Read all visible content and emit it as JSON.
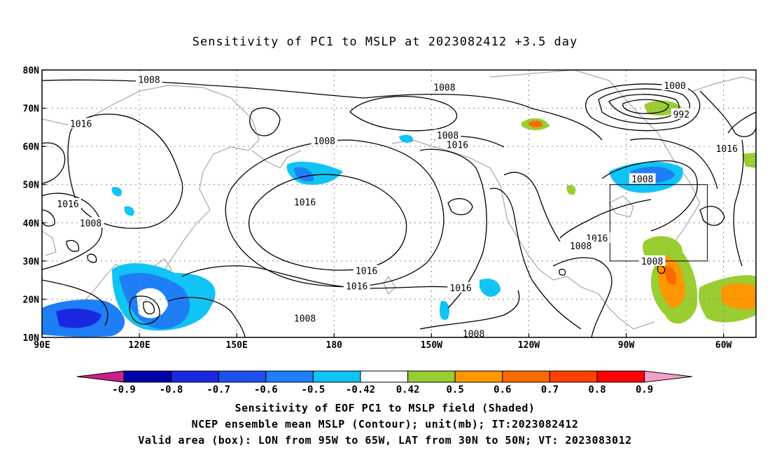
{
  "title": "Sensitivity of PC1 to MSLP at 2023082412 +3.5 day",
  "map": {
    "lat_labels": [
      "80N",
      "70N",
      "60N",
      "50N",
      "40N",
      "30N",
      "20N",
      "10N"
    ],
    "lat_values": [
      80,
      70,
      60,
      50,
      40,
      30,
      20,
      10
    ],
    "lon_labels": [
      "90E",
      "120E",
      "150E",
      "180",
      "150W",
      "120W",
      "90W",
      "60W"
    ],
    "lon_values": [
      90,
      120,
      150,
      180,
      210,
      240,
      270,
      300
    ],
    "lon_range": [
      90,
      310
    ],
    "lat_range": [
      10,
      80
    ],
    "contour_labels": [
      {
        "text": "1008",
        "lon": 123,
        "lat": 77.5
      },
      {
        "text": "1008",
        "lon": 214,
        "lat": 75.5
      },
      {
        "text": "1000",
        "lon": 285,
        "lat": 76
      },
      {
        "text": "1016",
        "lon": 102,
        "lat": 66
      },
      {
        "text": "1008",
        "lon": 177,
        "lat": 61.5
      },
      {
        "text": "1008",
        "lon": 215,
        "lat": 63
      },
      {
        "text": "992",
        "lon": 287,
        "lat": 68.5
      },
      {
        "text": "1016",
        "lon": 218,
        "lat": 60.5
      },
      {
        "text": "1016",
        "lon": 301,
        "lat": 59.5
      },
      {
        "text": "1008",
        "lon": 275,
        "lat": 51.5
      },
      {
        "text": "1016",
        "lon": 98,
        "lat": 45
      },
      {
        "text": "1016",
        "lon": 171,
        "lat": 45.5
      },
      {
        "text": "1008",
        "lon": 105,
        "lat": 40
      },
      {
        "text": "1016",
        "lon": 261,
        "lat": 36
      },
      {
        "text": "1008",
        "lon": 256,
        "lat": 34
      },
      {
        "text": "1008",
        "lon": 278,
        "lat": 30
      },
      {
        "text": "1016",
        "lon": 190,
        "lat": 27.5
      },
      {
        "text": "1016",
        "lon": 187,
        "lat": 23.5
      },
      {
        "text": "1016",
        "lon": 219,
        "lat": 23
      },
      {
        "text": "1008",
        "lon": 171,
        "lat": 15
      },
      {
        "text": "1008",
        "lon": 223,
        "lat": 11
      }
    ],
    "valid_box": {
      "lon_from": 265,
      "lon_to": 295,
      "lat_from": 30,
      "lat_to": 50
    }
  },
  "colorbar": {
    "labels": [
      "-0.9",
      "-0.8",
      "-0.7",
      "-0.6",
      "-0.5",
      "-0.42",
      "0.42",
      "0.5",
      "0.6",
      "0.7",
      "0.8",
      "0.9"
    ],
    "colors": [
      "#0000a8",
      "#1a28e0",
      "#1e50f0",
      "#1e7ef5",
      "#10c4f5",
      "#ffffff",
      "#9acd32",
      "#ff9800",
      "#ff6a00",
      "#ff4000",
      "#ff0000"
    ],
    "low_arrow_color": "#c8208c",
    "high_arrow_color": "#f59fc8"
  },
  "captions": [
    "Sensitivity of EOF PC1 to MSLP field (Shaded)",
    "NCEP ensemble mean MSLP (Contour); unit(mb); IT:2023082412",
    "Valid area (box): LON from 95W to 65W, LAT from 30N to 50N; VT: 2023083012"
  ]
}
